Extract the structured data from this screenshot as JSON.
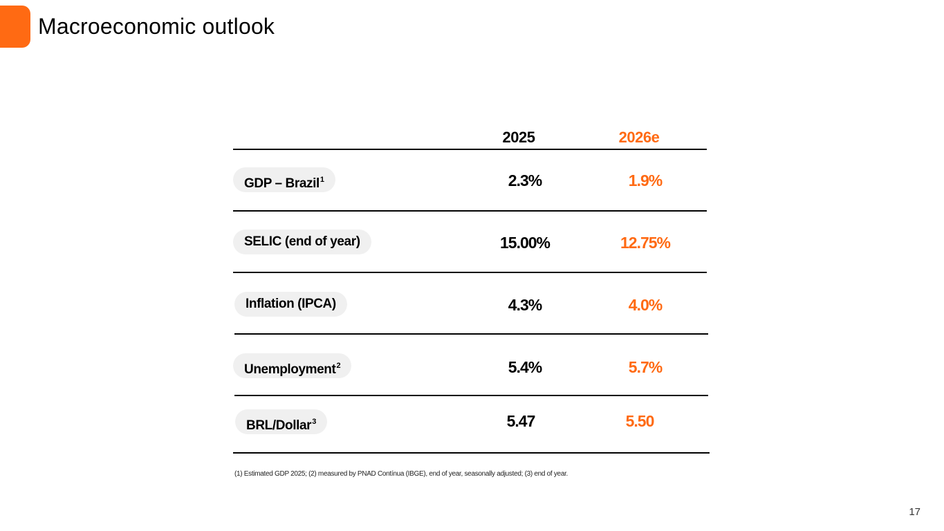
{
  "header": {
    "title": "Macroeconomic outlook"
  },
  "table": {
    "columns": [
      "2025",
      "2026e"
    ],
    "rows": [
      {
        "label": "GDP – Brazil",
        "note": "1",
        "v2025": "2.3%",
        "v2026": "1.9%"
      },
      {
        "label": "SELIC (end of year)",
        "note": "",
        "v2025": "15.00%",
        "v2026": "12.75%"
      },
      {
        "label": "Inflation (IPCA)",
        "note": "",
        "v2025": "4.3%",
        "v2026": "4.0%"
      },
      {
        "label": "Unemployment",
        "note": "2",
        "v2025": "5.4%",
        "v2026": "5.7%"
      },
      {
        "label": "BRL/Dollar",
        "note": "3",
        "v2025": "5.47",
        "v2026": "5.50"
      }
    ]
  },
  "footnote": "(1) Estimated GDP 2025; (2) measured by PNAD Contínua (IBGE), end of year, seasonally adjusted; (3) end of year.",
  "page_number": "17",
  "colors": {
    "accent": "#ff6a13",
    "pill_bg": "#f0f0f0"
  }
}
